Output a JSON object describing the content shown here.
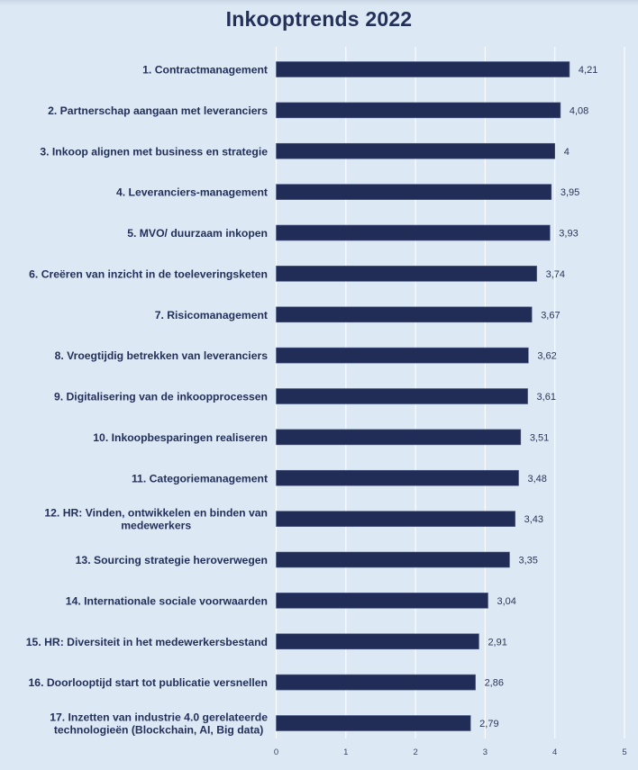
{
  "chart_data": {
    "type": "bar",
    "orientation": "horizontal",
    "title": "Inkooptrends 2022",
    "xlabel": "",
    "ylabel": "",
    "xlim": [
      0,
      5
    ],
    "x_ticks": [
      "0",
      "1",
      "2",
      "3",
      "4",
      "5"
    ],
    "grid": true,
    "legend": "none",
    "decimal_separator": ",",
    "categories": [
      [
        "1. Contractmanagement"
      ],
      [
        "2. Partnerschap aangaan met leveranciers"
      ],
      [
        "3. Inkoop alignen met business en strategie"
      ],
      [
        "4. Leveranciers-management"
      ],
      [
        "5. MVO/ duurzaam inkopen"
      ],
      [
        "6. Creëren van inzicht in de toeleveringsketen"
      ],
      [
        "7. Risicomanagement"
      ],
      [
        "8. Vroegtijdig betrekken van leveranciers"
      ],
      [
        "9. Digitalisering van de inkoopprocessen"
      ],
      [
        "10. Inkoopbesparingen realiseren"
      ],
      [
        "11. Categoriemanagement"
      ],
      [
        "12. HR: Vinden, ontwikkelen en binden van",
        "medewerkers"
      ],
      [
        "13. Sourcing strategie heroverwegen"
      ],
      [
        "14. Internationale sociale voorwaarden"
      ],
      [
        "15. HR: Diversiteit in het medewerkersbestand"
      ],
      [
        "16. Doorlooptijd start tot publicatie versnellen"
      ],
      [
        "17. Inzetten van industrie 4.0 gerelateerde",
        "technologieën (Blockchain, AI, Big data)"
      ]
    ],
    "values": [
      4.21,
      4.08,
      4,
      3.95,
      3.93,
      3.74,
      3.67,
      3.62,
      3.61,
      3.51,
      3.48,
      3.43,
      3.35,
      3.04,
      2.91,
      2.86,
      2.79
    ],
    "value_labels": [
      "4,21",
      "4,08",
      "4",
      "3,95",
      "3,93",
      "3,74",
      "3,67",
      "3,62",
      "3,61",
      "3,51",
      "3,48",
      "3,43",
      "3,35",
      "3,04",
      "2,91",
      "2,86",
      "2,79"
    ],
    "colors": {
      "bar": "#222d57",
      "background": "#dde8f5",
      "text": "#23305a",
      "grid": "#ffffff"
    }
  }
}
